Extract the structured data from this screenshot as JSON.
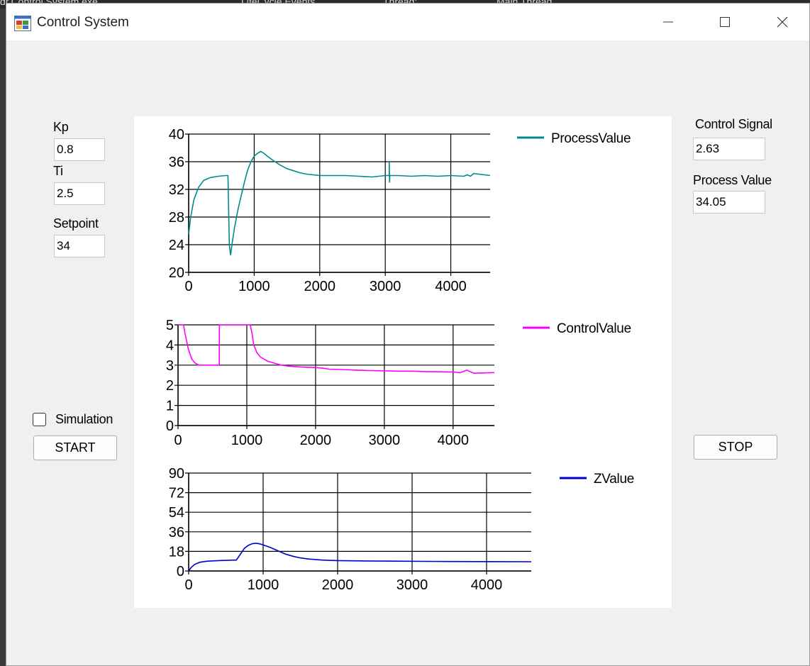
{
  "background_text": [
    "dr.Control System.exe",
    "LifeCycle Events",
    "Thread:",
    "Main Thread"
  ],
  "window": {
    "title": "Control System",
    "icon": "winforms-app-icon",
    "minimize_icon": "minimize-icon",
    "maximize_icon": "maximize-icon",
    "close_icon": "close-icon"
  },
  "left_panel": {
    "kp_label": "Kp",
    "kp_value": "0.8",
    "ti_label": "Ti",
    "ti_value": "2.5",
    "setpoint_label": "Setpoint",
    "setpoint_value": "34",
    "simulation_label": "Simulation",
    "simulation_checked": false,
    "start_label": "START"
  },
  "right_panel": {
    "control_signal_label": "Control Signal",
    "control_signal_value": "2.63",
    "process_value_label": "Process Value",
    "process_value_value": "34.05",
    "stop_label": "STOP"
  },
  "chart_data": [
    {
      "type": "line",
      "series": [
        {
          "name": "ProcessValue",
          "color": "#008B8B",
          "x": [
            0,
            30,
            80,
            150,
            230,
            330,
            450,
            560,
            600,
            620,
            640,
            660,
            700,
            750,
            800,
            850,
            900,
            950,
            1000,
            1050,
            1100,
            1150,
            1200,
            1300,
            1400,
            1500,
            1600,
            1700,
            1800,
            1900,
            2000,
            2200,
            2400,
            2600,
            2800,
            3000,
            3060,
            3061,
            3065,
            3070,
            3200,
            3400,
            3600,
            3800,
            4000,
            4200,
            4250,
            4300,
            4350,
            4600
          ],
          "y": [
            25.5,
            28,
            30.5,
            32.3,
            33.3,
            33.7,
            33.9,
            34,
            34,
            24,
            22.5,
            24,
            26.5,
            29,
            31,
            33,
            34.8,
            36,
            36.8,
            37.2,
            37.5,
            37.2,
            36.8,
            36.1,
            35.5,
            35,
            34.7,
            34.4,
            34.2,
            34.1,
            34,
            34,
            34,
            33.9,
            33.8,
            34,
            34,
            36,
            33,
            34,
            34,
            33.9,
            34,
            33.9,
            34,
            33.9,
            34.1,
            33.9,
            34.3,
            34
          ]
        }
      ],
      "xlim": [
        0,
        4600
      ],
      "ylim": [
        20,
        40
      ],
      "x_ticks": [
        0,
        1000,
        2000,
        3000,
        4000
      ],
      "y_ticks": [
        20,
        24,
        28,
        32,
        36,
        40
      ],
      "grid": true,
      "legend": "top-right"
    },
    {
      "type": "line",
      "series": [
        {
          "name": "ControlValue",
          "color": "#FF00FF",
          "x": [
            0,
            80,
            100,
            150,
            200,
            250,
            300,
            400,
            500,
            600,
            601,
            900,
            1050,
            1080,
            1100,
            1150,
            1200,
            1300,
            1400,
            1500,
            1600,
            1800,
            2000,
            2100,
            2200,
            2400,
            2600,
            2800,
            3000,
            3200,
            3400,
            3600,
            3800,
            4000,
            4100,
            4200,
            4300,
            4600
          ],
          "y": [
            5,
            5,
            4.6,
            3.8,
            3.3,
            3.1,
            3.0,
            3.0,
            3.0,
            3.0,
            5,
            5,
            5,
            4.5,
            4.0,
            3.6,
            3.4,
            3.2,
            3.1,
            3.0,
            2.95,
            2.9,
            2.88,
            2.85,
            2.8,
            2.78,
            2.75,
            2.73,
            2.72,
            2.7,
            2.7,
            2.68,
            2.67,
            2.66,
            2.62,
            2.75,
            2.6,
            2.63
          ]
        }
      ],
      "xlim": [
        0,
        4600
      ],
      "ylim": [
        0,
        5
      ],
      "x_ticks": [
        0,
        1000,
        2000,
        3000,
        4000
      ],
      "y_ticks": [
        0,
        1,
        2,
        3,
        4,
        5
      ],
      "grid": true,
      "legend": "top-right"
    },
    {
      "type": "line",
      "series": [
        {
          "name": "ZValue",
          "color": "#0000CD",
          "x": [
            0,
            30,
            80,
            150,
            250,
            400,
            600,
            640,
            700,
            750,
            800,
            850,
            900,
            950,
            1000,
            1100,
            1200,
            1300,
            1400,
            1500,
            1600,
            1800,
            2000,
            2400,
            2800,
            3200,
            3600,
            4000,
            4600
          ],
          "y": [
            0,
            3,
            6,
            8,
            9,
            9.5,
            10,
            10,
            16,
            21,
            23.5,
            25,
            25.5,
            25,
            24,
            21.5,
            18.5,
            15.5,
            13.5,
            12,
            11,
            10,
            9.5,
            9.2,
            9,
            8.8,
            8.7,
            8.6,
            8.5
          ]
        }
      ],
      "xlim": [
        0,
        4600
      ],
      "ylim": [
        0,
        90
      ],
      "x_ticks": [
        0,
        1000,
        2000,
        3000,
        4000
      ],
      "y_ticks": [
        0,
        18,
        36,
        54,
        72,
        90
      ],
      "grid": true,
      "legend": "top-right"
    }
  ]
}
